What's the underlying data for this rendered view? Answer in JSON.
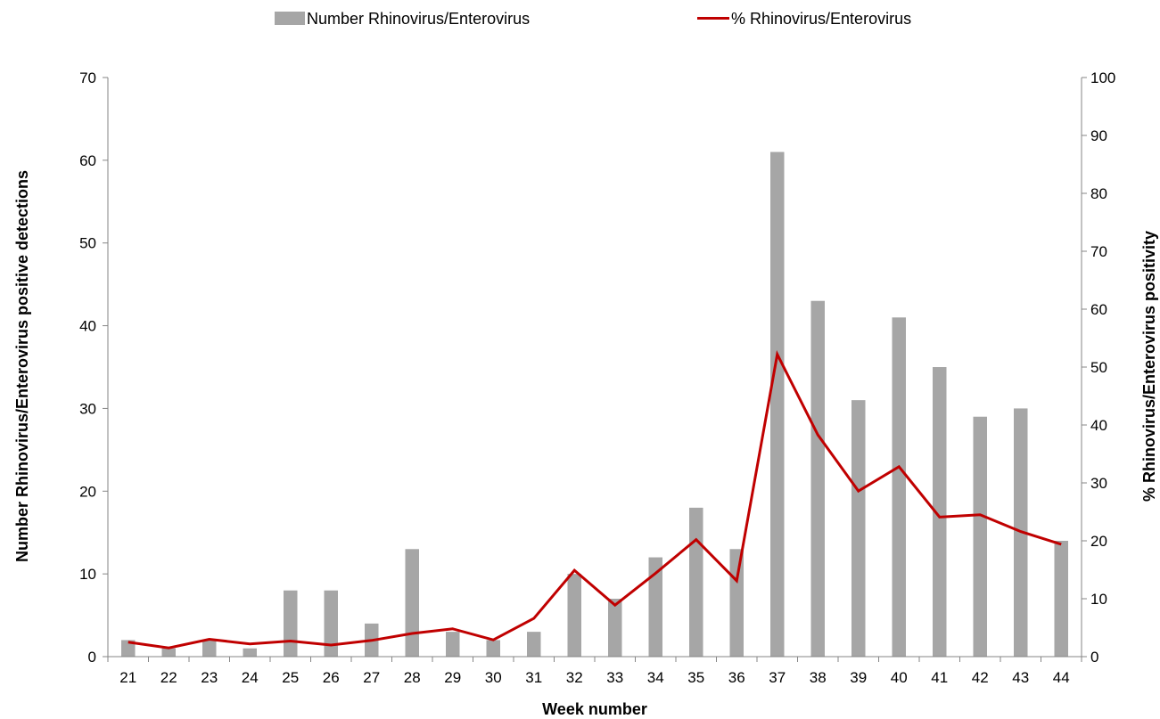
{
  "chart_data": {
    "type": "bar",
    "xlabel": "Week number",
    "ylabel": "Number Rhinovirus/Enterovirus positive detections",
    "ylabel_right": "% Rhinovirus/Enterovirus positivity",
    "ylim": [
      0,
      70
    ],
    "ylim_right": [
      0,
      100
    ],
    "yticks": [
      0,
      10,
      20,
      30,
      40,
      50,
      60,
      70
    ],
    "yticks_right": [
      0,
      10,
      20,
      30,
      40,
      50,
      60,
      70,
      80,
      90,
      100
    ],
    "categories": [
      "21",
      "22",
      "23",
      "24",
      "25",
      "26",
      "27",
      "28",
      "29",
      "30",
      "31",
      "32",
      "33",
      "34",
      "35",
      "36",
      "37",
      "38",
      "39",
      "40",
      "41",
      "42",
      "43",
      "44"
    ],
    "series": [
      {
        "name": "Number Rhinovirus/Enterovirus",
        "type": "bar",
        "axis": "left",
        "values": [
          2,
          1,
          2,
          1,
          8,
          8,
          4,
          13,
          3,
          2,
          3,
          10,
          7,
          12,
          18,
          13,
          61,
          43,
          31,
          41,
          35,
          29,
          30,
          14
        ]
      },
      {
        "name": "% Rhinovirus/Enterovirus",
        "type": "line",
        "axis": "right",
        "values": [
          2.5,
          1.5,
          3,
          2.2,
          2.7,
          2,
          2.8,
          4,
          4.8,
          2.9,
          6.6,
          14.9,
          8.9,
          14.4,
          20.2,
          13.1,
          52.2,
          38.3,
          28.6,
          32.8,
          24.1,
          24.5,
          21.6,
          19.4
        ]
      }
    ],
    "legend": "top",
    "grid": false,
    "colors": {
      "bar": "#a6a6a6",
      "line": "#c00000",
      "axis": "#868686"
    }
  }
}
